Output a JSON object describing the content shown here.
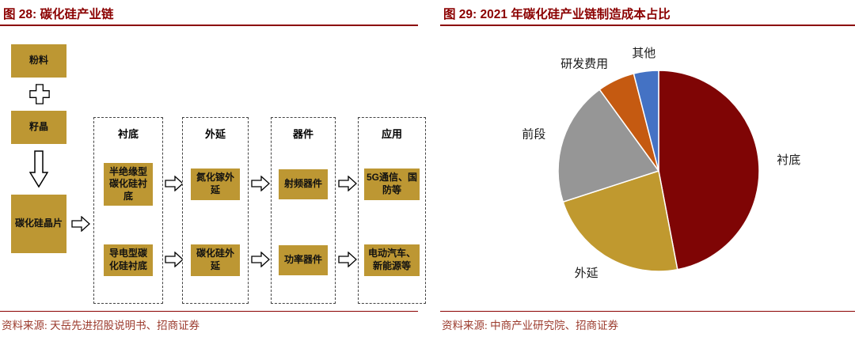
{
  "left_figure": {
    "title": "图 28: 碳化硅产业链",
    "source": "资料来源: 天岳先进招股说明书、招商证券",
    "flow": [
      "粉料",
      "籽晶",
      "碳化硅晶片"
    ],
    "columns": [
      {
        "header": "衬底",
        "boxes": [
          "半绝缘型碳化硅衬底",
          "导电型碳化硅衬底"
        ]
      },
      {
        "header": "外延",
        "boxes": [
          "氮化镓外延",
          "碳化硅外延"
        ]
      },
      {
        "header": "器件",
        "boxes": [
          "射频器件",
          "功率器件"
        ]
      },
      {
        "header": "应用",
        "boxes": [
          "5G通信、国防等",
          "电动汽车、新能源等"
        ]
      }
    ]
  },
  "right_figure": {
    "title": "图 29: 2021 年碳化硅产业链制造成本占比",
    "source": "资料来源: 中商产业研究院、招商证券"
  },
  "chart_data": {
    "type": "pie",
    "title": "2021 年碳化硅产业链制造成本占比",
    "labels": [
      "衬底",
      "外延",
      "前段",
      "研发费用",
      "其他"
    ],
    "values": [
      47,
      23,
      20,
      6,
      4
    ],
    "unit": "%",
    "colors": [
      "#7F0505",
      "#C0992F",
      "#969696",
      "#C55A11",
      "#4472C4"
    ],
    "start_angle_deg": 0,
    "direction": "clockwise",
    "label_position": "outside",
    "legend": "none"
  },
  "theme": {
    "accent_red": "#8B0000",
    "box_gold": "#BD9733"
  }
}
